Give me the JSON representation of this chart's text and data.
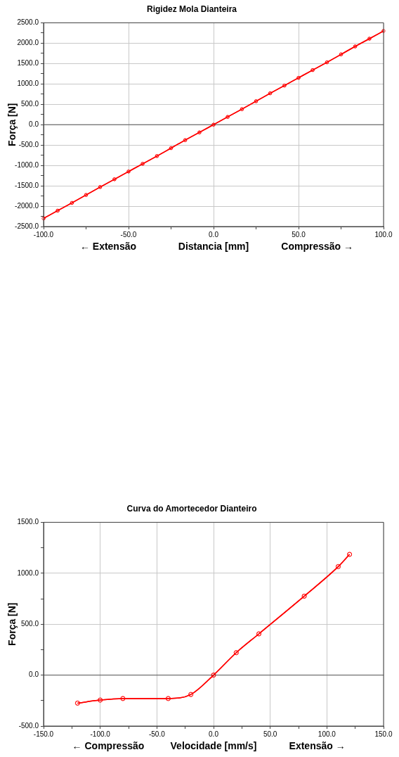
{
  "chart_data": [
    {
      "type": "line",
      "title": "Rigidez Mola Dianteira",
      "xlabel": "Distancia [mm]",
      "ylabel": "Força [N]",
      "annotations": [
        "← Extensão",
        "Compressão →"
      ],
      "x": [
        -100,
        -91.7,
        -83.3,
        -75,
        -66.7,
        -58.3,
        -50,
        -41.7,
        -33.3,
        -25,
        -16.7,
        -8.3,
        0,
        8.3,
        16.7,
        25,
        33.3,
        41.7,
        50,
        58.3,
        66.7,
        75,
        83.3,
        91.7,
        100
      ],
      "values": [
        -2300,
        -2110,
        -1920,
        -1725,
        -1530,
        -1340,
        -1150,
        -960,
        -770,
        -575,
        -380,
        -190,
        0,
        190,
        380,
        575,
        770,
        960,
        1150,
        1340,
        1530,
        1725,
        1920,
        2110,
        2300
      ],
      "color": "#ff0000",
      "marker": "circle",
      "grid": true,
      "xlim": [
        -100,
        100
      ],
      "ylim": [
        -2500,
        2500
      ],
      "xticks": [
        {
          "value": -100,
          "label": "-100.0"
        },
        {
          "value": -75,
          "label": null
        },
        {
          "value": -50,
          "label": "-50.0"
        },
        {
          "value": -25,
          "label": null
        },
        {
          "value": 0,
          "label": "0.0"
        },
        {
          "value": 25,
          "label": null
        },
        {
          "value": 50,
          "label": "50.0"
        },
        {
          "value": 75,
          "label": null
        },
        {
          "value": 100,
          "label": "100.0"
        }
      ],
      "yticks": [
        {
          "value": -2500,
          "label": "-2500.0"
        },
        {
          "value": -2250,
          "label": null
        },
        {
          "value": -2000,
          "label": "-2000.0"
        },
        {
          "value": -1750,
          "label": null
        },
        {
          "value": -1500,
          "label": "-1500.0"
        },
        {
          "value": -1250,
          "label": null
        },
        {
          "value": -1000,
          "label": "-1000.0"
        },
        {
          "value": -750,
          "label": null
        },
        {
          "value": -500,
          "label": "-500.0"
        },
        {
          "value": -250,
          "label": null
        },
        {
          "value": 0,
          "label": "0.0"
        },
        {
          "value": 250,
          "label": null
        },
        {
          "value": 500,
          "label": "500.0"
        },
        {
          "value": 750,
          "label": null
        },
        {
          "value": 1000,
          "label": "1000.0"
        },
        {
          "value": 1250,
          "label": null
        },
        {
          "value": 1500,
          "label": "1500.0"
        },
        {
          "value": 1750,
          "label": null
        },
        {
          "value": 2000,
          "label": "2000.0"
        },
        {
          "value": 2250,
          "label": null
        },
        {
          "value": 2500,
          "label": "2500.0"
        }
      ],
      "ref_lines": [
        {
          "axis": "y",
          "value": 0,
          "color": "#555555"
        }
      ]
    },
    {
      "type": "line",
      "title": "Curva do Amortecedor Dianteiro",
      "xlabel": "Velocidade [mm/s]",
      "ylabel": "Força [N]",
      "annotations": [
        "← Compressão",
        "Extensão →"
      ],
      "x": [
        -120,
        -100,
        -80,
        -40,
        -20,
        0,
        20,
        40,
        80,
        110,
        120
      ],
      "values": [
        -275,
        -245,
        -230,
        -230,
        -190,
        0,
        220,
        405,
        775,
        1065,
        1185
      ],
      "color": "#ff0000",
      "marker": "circle",
      "grid": true,
      "xlim": [
        -150,
        150
      ],
      "ylim": [
        -500,
        1500
      ],
      "xticks": [
        {
          "value": -150,
          "label": "-150.0"
        },
        {
          "value": -125,
          "label": null
        },
        {
          "value": -100,
          "label": "-100.0"
        },
        {
          "value": -75,
          "label": null
        },
        {
          "value": -50,
          "label": "-50.0"
        },
        {
          "value": -25,
          "label": null
        },
        {
          "value": 0,
          "label": "0.0"
        },
        {
          "value": 25,
          "label": null
        },
        {
          "value": 50,
          "label": "50.0"
        },
        {
          "value": 75,
          "label": null
        },
        {
          "value": 100,
          "label": "100.0"
        },
        {
          "value": 125,
          "label": null
        },
        {
          "value": 150,
          "label": "150.0"
        }
      ],
      "yticks": [
        {
          "value": -500,
          "label": "-500.0"
        },
        {
          "value": -250,
          "label": null
        },
        {
          "value": 0,
          "label": "0.0"
        },
        {
          "value": 250,
          "label": null
        },
        {
          "value": 500,
          "label": "500.0"
        },
        {
          "value": 750,
          "label": null
        },
        {
          "value": 1000,
          "label": "1000.0"
        },
        {
          "value": 1250,
          "label": null
        },
        {
          "value": 1500,
          "label": "1500.0"
        }
      ],
      "ref_lines": [
        {
          "axis": "y",
          "value": 0,
          "color": "#555555"
        }
      ]
    }
  ]
}
